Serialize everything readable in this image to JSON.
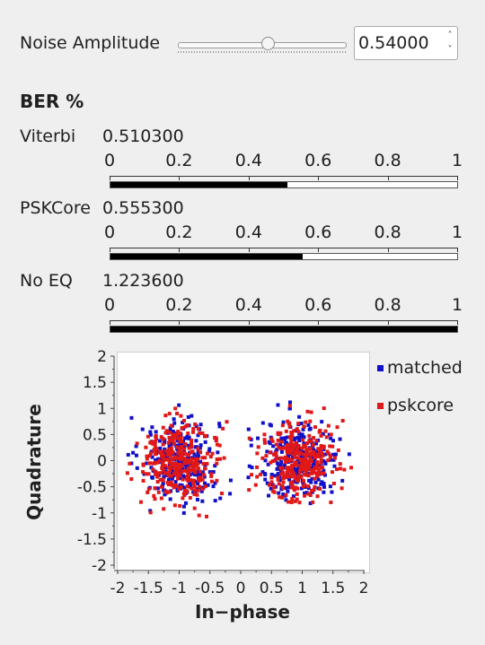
{
  "noise": {
    "label": "Noise Amplitude",
    "value_text": "0.54000",
    "slider_fraction": 0.54
  },
  "ber": {
    "heading": "BER %",
    "scale_ticks": [
      "0",
      "0.2",
      "0.4",
      "0.6",
      "0.8",
      "1"
    ],
    "rows": [
      {
        "label": "Viterbi",
        "value": "0.510300",
        "fraction": 0.5103
      },
      {
        "label": "PSKCore",
        "value": "0.555300",
        "fraction": 0.5553
      },
      {
        "label": "No EQ",
        "value": "1.223600",
        "fraction": 1.0
      }
    ]
  },
  "colors": {
    "matched": "#1010c8",
    "pskcore": "#e01818"
  },
  "chart_data": {
    "type": "scatter",
    "xlabel": "In−phase",
    "ylabel": "Quadrature",
    "xlim": [
      -2,
      2
    ],
    "ylim": [
      -2,
      2
    ],
    "x_ticks": [
      "-2",
      "-1.5",
      "-1",
      "-0.5",
      "0",
      "0.5",
      "1",
      "1.5",
      "2"
    ],
    "y_ticks": [
      "2",
      "1.5",
      "1",
      "0.5",
      "0",
      "-0.5",
      "-1",
      "-1.5",
      "-2"
    ],
    "legend": "top-right",
    "series": [
      {
        "name": "matched",
        "clusters": [
          {
            "cx": -1.0,
            "cy": 0.0,
            "sx": 0.32,
            "sy": 0.42,
            "n": 260
          },
          {
            "cx": 0.95,
            "cy": 0.0,
            "sx": 0.32,
            "sy": 0.38,
            "n": 260
          }
        ]
      },
      {
        "name": "pskcore",
        "clusters": [
          {
            "cx": -1.0,
            "cy": 0.0,
            "sx": 0.3,
            "sy": 0.4,
            "n": 320
          },
          {
            "cx": 0.95,
            "cy": 0.0,
            "sx": 0.3,
            "sy": 0.36,
            "n": 320
          }
        ]
      }
    ]
  }
}
